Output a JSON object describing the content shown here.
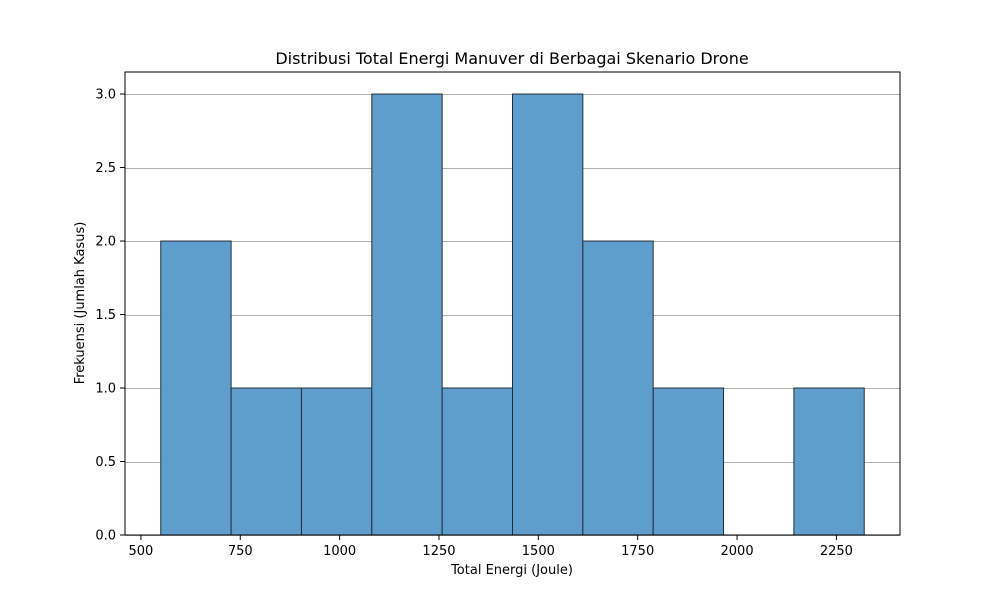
{
  "chart_data": {
    "type": "histogram",
    "title": "Distribusi Total Energi Manuver di Berbagai Skenario Drone",
    "xlabel": "Total Energi (Joule)",
    "ylabel": "Frekuensi (Jumlah Kasus)",
    "xlim": [
      460,
      2410
    ],
    "ylim": [
      0,
      3.15
    ],
    "grid": "y-axis",
    "bar_color": "#5f9ecc",
    "bar_edge_color": "#1f2f3a",
    "grid_color": "#b0b0b0",
    "bins": [
      {
        "start": 550,
        "end": 727,
        "count": 2
      },
      {
        "start": 727,
        "end": 904,
        "count": 1
      },
      {
        "start": 904,
        "end": 1081,
        "count": 1
      },
      {
        "start": 1081,
        "end": 1258,
        "count": 3
      },
      {
        "start": 1258,
        "end": 1435,
        "count": 1
      },
      {
        "start": 1435,
        "end": 1612,
        "count": 3
      },
      {
        "start": 1612,
        "end": 1789,
        "count": 2
      },
      {
        "start": 1789,
        "end": 1966,
        "count": 1
      },
      {
        "start": 1966,
        "end": 2143,
        "count": 0
      },
      {
        "start": 2143,
        "end": 2320,
        "count": 1
      }
    ],
    "x_ticks": [
      {
        "value": 500,
        "label": "500"
      },
      {
        "value": 750,
        "label": "750"
      },
      {
        "value": 1000,
        "label": "1000"
      },
      {
        "value": 1250,
        "label": "1250"
      },
      {
        "value": 1500,
        "label": "1500"
      },
      {
        "value": 1750,
        "label": "1750"
      },
      {
        "value": 2000,
        "label": "2000"
      },
      {
        "value": 2250,
        "label": "2250"
      }
    ],
    "y_ticks": [
      {
        "value": 0,
        "label": "0.0"
      },
      {
        "value": 0.5,
        "label": "0.5"
      },
      {
        "value": 1,
        "label": "1.0"
      },
      {
        "value": 1.5,
        "label": "1.5"
      },
      {
        "value": 2,
        "label": "2.0"
      },
      {
        "value": 2.5,
        "label": "2.5"
      },
      {
        "value": 3,
        "label": "3.0"
      }
    ]
  }
}
